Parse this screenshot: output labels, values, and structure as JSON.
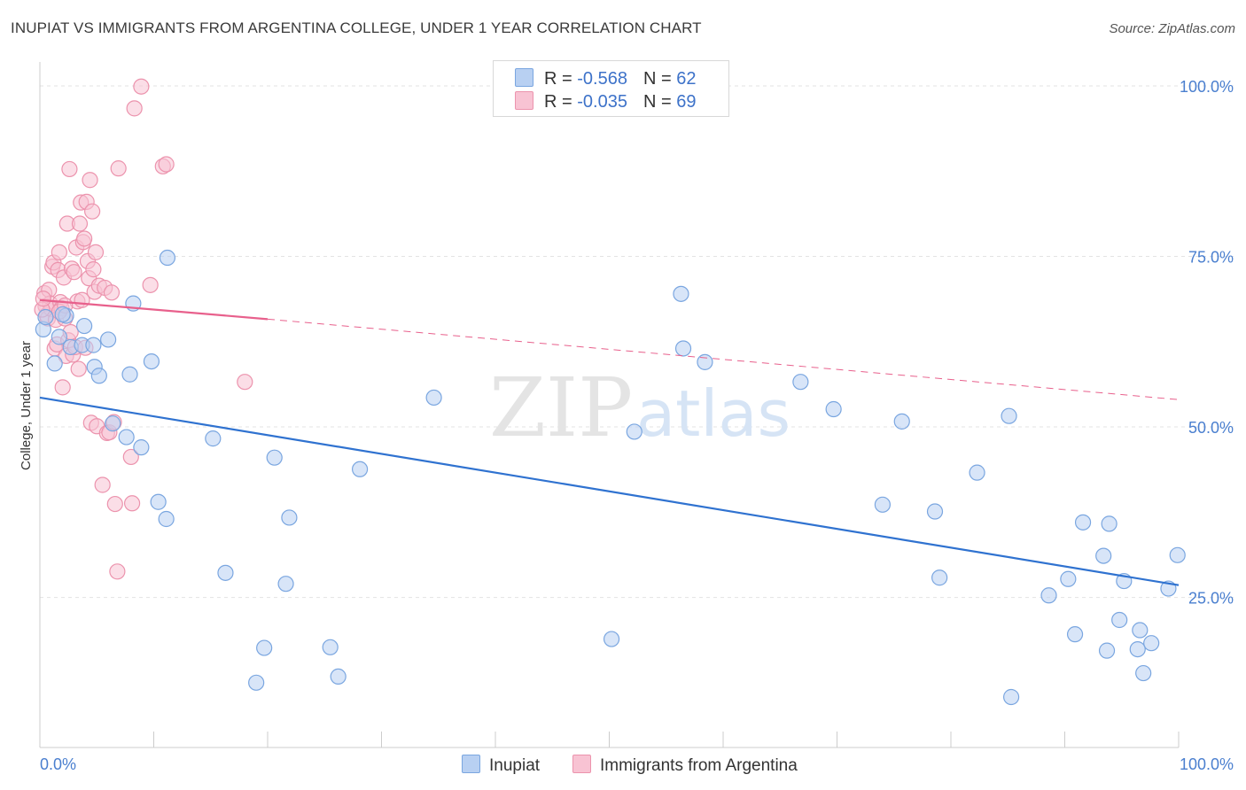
{
  "title": "INUPIAT VS IMMIGRANTS FROM ARGENTINA COLLEGE, UNDER 1 YEAR CORRELATION CHART",
  "source": "Source: ZipAtlas.com",
  "watermark": {
    "zip": "ZIP",
    "atlas": "atlas"
  },
  "legend": {
    "rows": [
      {
        "r_label": "R = ",
        "r_value": "-0.568",
        "n_label": "N = ",
        "n_value": "62"
      },
      {
        "r_label": "R = ",
        "r_value": "-0.035",
        "n_label": "N = ",
        "n_value": "69"
      }
    ]
  },
  "bottom_legend": {
    "inupiat": "Inupiat",
    "argentina": "Immigrants from Argentina"
  },
  "colors": {
    "blue_fill": "#b8d0f2",
    "blue_stroke": "#7aa6e0",
    "blue_line": "#2f72d0",
    "pink_fill": "#f8c3d3",
    "pink_stroke": "#ec93ad",
    "pink_line": "#e8608c",
    "accent_text": "#4a7fcf"
  },
  "chart_data": {
    "type": "scatter",
    "title": "INUPIAT VS IMMIGRANTS FROM ARGENTINA COLLEGE, UNDER 1 YEAR CORRELATION CHART",
    "xlabel": "",
    "ylabel": "College, Under 1 year",
    "xlim": [
      0,
      100
    ],
    "ylim": [
      3,
      103.5
    ],
    "x_tick_labels": [
      "0.0%",
      "100.0%"
    ],
    "y_ticks": [
      25,
      50,
      75,
      100
    ],
    "y_tick_labels": [
      "25.0%",
      "50.0%",
      "75.0%",
      "100.0%"
    ],
    "grid": true,
    "series": [
      {
        "name": "Inupiat",
        "color": "blue",
        "trendline": {
          "x": [
            0,
            100
          ],
          "y": [
            54.3,
            26.8
          ],
          "dashed_extension": false
        },
        "points": [
          [
            0.3,
            64.3
          ],
          [
            1.3,
            59.3
          ],
          [
            1.7,
            63.2
          ],
          [
            2.3,
            66.3
          ],
          [
            2.7,
            61.7
          ],
          [
            3.7,
            62.0
          ],
          [
            3.9,
            64.8
          ],
          [
            4.7,
            62.0
          ],
          [
            4.8,
            58.8
          ],
          [
            5.2,
            57.5
          ],
          [
            6.0,
            62.8
          ],
          [
            6.4,
            50.5
          ],
          [
            7.6,
            48.5
          ],
          [
            7.9,
            57.7
          ],
          [
            8.2,
            68.1
          ],
          [
            8.9,
            47.0
          ],
          [
            9.8,
            59.6
          ],
          [
            10.4,
            39.0
          ],
          [
            11.1,
            36.5
          ],
          [
            11.2,
            74.8
          ],
          [
            15.2,
            48.3
          ],
          [
            16.3,
            28.6
          ],
          [
            19.0,
            12.5
          ],
          [
            19.7,
            17.6
          ],
          [
            20.6,
            45.5
          ],
          [
            21.6,
            27.0
          ],
          [
            21.9,
            36.7
          ],
          [
            25.5,
            17.7
          ],
          [
            26.2,
            13.4
          ],
          [
            28.1,
            43.8
          ],
          [
            34.6,
            54.3
          ],
          [
            50.2,
            18.9
          ],
          [
            52.2,
            49.3
          ],
          [
            56.3,
            69.5
          ],
          [
            56.5,
            61.5
          ],
          [
            58.4,
            59.5
          ],
          [
            66.8,
            56.6
          ],
          [
            69.7,
            52.6
          ],
          [
            74.0,
            38.6
          ],
          [
            75.7,
            50.8
          ],
          [
            78.6,
            37.6
          ],
          [
            79.0,
            27.9
          ],
          [
            82.3,
            43.3
          ],
          [
            85.1,
            51.6
          ],
          [
            85.3,
            10.4
          ],
          [
            88.6,
            25.3
          ],
          [
            90.3,
            27.7
          ],
          [
            90.9,
            19.6
          ],
          [
            91.6,
            36.0
          ],
          [
            93.4,
            31.1
          ],
          [
            93.7,
            17.2
          ],
          [
            93.9,
            35.8
          ],
          [
            94.8,
            21.7
          ],
          [
            95.2,
            27.4
          ],
          [
            96.4,
            17.4
          ],
          [
            96.6,
            20.2
          ],
          [
            96.9,
            13.9
          ],
          [
            97.6,
            18.3
          ],
          [
            99.1,
            26.3
          ],
          [
            99.9,
            31.2
          ],
          [
            0.5,
            66.1
          ],
          [
            2.0,
            66.5
          ]
        ]
      },
      {
        "name": "Immigrants from Argentina",
        "color": "pink",
        "trendline": {
          "x": [
            0,
            20
          ],
          "y": [
            68.6,
            65.8
          ],
          "dashed_extension": true,
          "dashed_to": [
            100,
            54.0
          ]
        },
        "points": [
          [
            0.4,
            69.6
          ],
          [
            0.5,
            67.7
          ],
          [
            0.6,
            66.4
          ],
          [
            0.7,
            65.9
          ],
          [
            0.8,
            70.1
          ],
          [
            0.9,
            68.1
          ],
          [
            1.0,
            67.3
          ],
          [
            1.1,
            73.5
          ],
          [
            1.2,
            74.1
          ],
          [
            1.3,
            61.5
          ],
          [
            1.4,
            65.7
          ],
          [
            1.5,
            62.1
          ],
          [
            1.6,
            73.0
          ],
          [
            1.7,
            75.6
          ],
          [
            1.8,
            68.3
          ],
          [
            1.9,
            67.4
          ],
          [
            2.0,
            55.8
          ],
          [
            2.1,
            71.9
          ],
          [
            2.2,
            65.9
          ],
          [
            2.3,
            60.4
          ],
          [
            2.4,
            79.8
          ],
          [
            2.5,
            62.7
          ],
          [
            2.6,
            87.8
          ],
          [
            2.7,
            63.9
          ],
          [
            2.8,
            73.2
          ],
          [
            2.9,
            60.6
          ],
          [
            3.0,
            72.7
          ],
          [
            3.1,
            61.7
          ],
          [
            3.2,
            76.3
          ],
          [
            3.3,
            68.4
          ],
          [
            3.4,
            58.5
          ],
          [
            3.5,
            79.8
          ],
          [
            3.6,
            82.9
          ],
          [
            3.7,
            68.6
          ],
          [
            3.8,
            77.1
          ],
          [
            3.9,
            77.6
          ],
          [
            4.0,
            61.6
          ],
          [
            4.1,
            83.0
          ],
          [
            4.2,
            74.3
          ],
          [
            4.3,
            71.8
          ],
          [
            4.4,
            86.2
          ],
          [
            4.5,
            50.6
          ],
          [
            4.6,
            81.6
          ],
          [
            4.7,
            73.1
          ],
          [
            4.8,
            69.8
          ],
          [
            4.9,
            75.6
          ],
          [
            5.0,
            50.1
          ],
          [
            5.2,
            70.7
          ],
          [
            5.5,
            41.5
          ],
          [
            5.7,
            70.4
          ],
          [
            5.9,
            49.1
          ],
          [
            6.1,
            49.2
          ],
          [
            6.3,
            69.7
          ],
          [
            6.5,
            50.7
          ],
          [
            6.6,
            38.7
          ],
          [
            6.8,
            28.8
          ],
          [
            6.9,
            87.9
          ],
          [
            8.0,
            45.6
          ],
          [
            8.1,
            38.8
          ],
          [
            8.3,
            96.7
          ],
          [
            8.9,
            99.9
          ],
          [
            9.7,
            70.8
          ],
          [
            10.8,
            88.2
          ],
          [
            11.1,
            88.5
          ],
          [
            18.0,
            56.6
          ],
          [
            0.2,
            67.2
          ],
          [
            0.3,
            68.8
          ],
          [
            1.7,
            66.9
          ],
          [
            2.2,
            67.8
          ]
        ]
      }
    ]
  }
}
